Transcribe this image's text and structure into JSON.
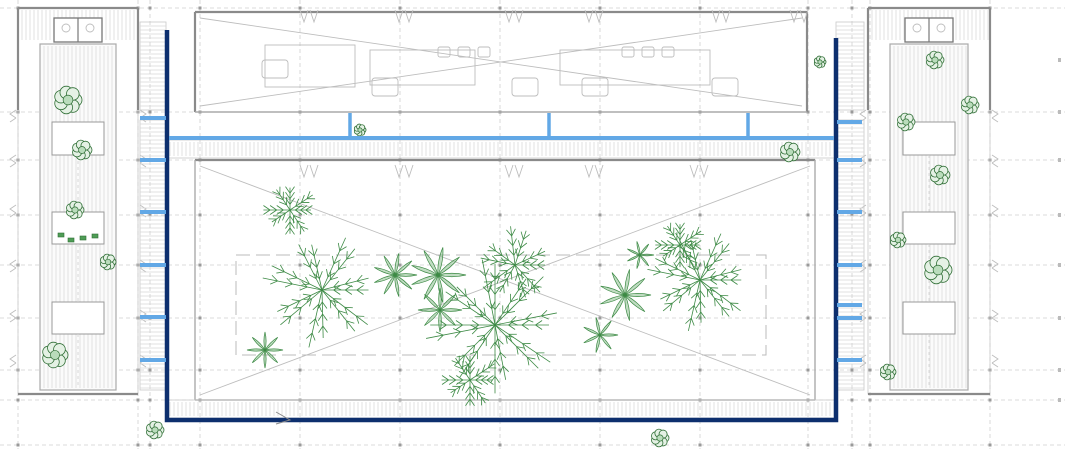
{
  "colors": {
    "background": "#ffffff",
    "structure_line": "#bdbdbd",
    "wall": "#8a8a8a",
    "primary_route": "#0d2f6e",
    "secondary_route": "#62a8e6",
    "vegetation": "#3d8a45"
  },
  "icons": {
    "door": "door-swing-icon",
    "chair": "chair-icon",
    "plant": "plant-icon",
    "tree": "tree-icon",
    "sink": "sink-icon",
    "table": "table-icon"
  },
  "diagram": {
    "type": "architectural-floor-plan",
    "view": "top-down",
    "zones": [
      {
        "id": "left-wing",
        "furnishing": [
          "sink",
          "table",
          "table",
          "table",
          "plant"
        ]
      },
      {
        "id": "upper-hall",
        "furnishing": [
          "chair",
          "table"
        ],
        "void_cross": true
      },
      {
        "id": "central-atrium",
        "furnishing": [
          "tree",
          "plant"
        ],
        "void_cross": true
      },
      {
        "id": "right-wing",
        "furnishing": [
          "sink",
          "table",
          "table",
          "table",
          "plant"
        ]
      }
    ],
    "circulation": {
      "primary_route": "dark-blue-perimeter-loop",
      "secondary_route": "light-blue-branches",
      "branch_count": 15
    }
  }
}
